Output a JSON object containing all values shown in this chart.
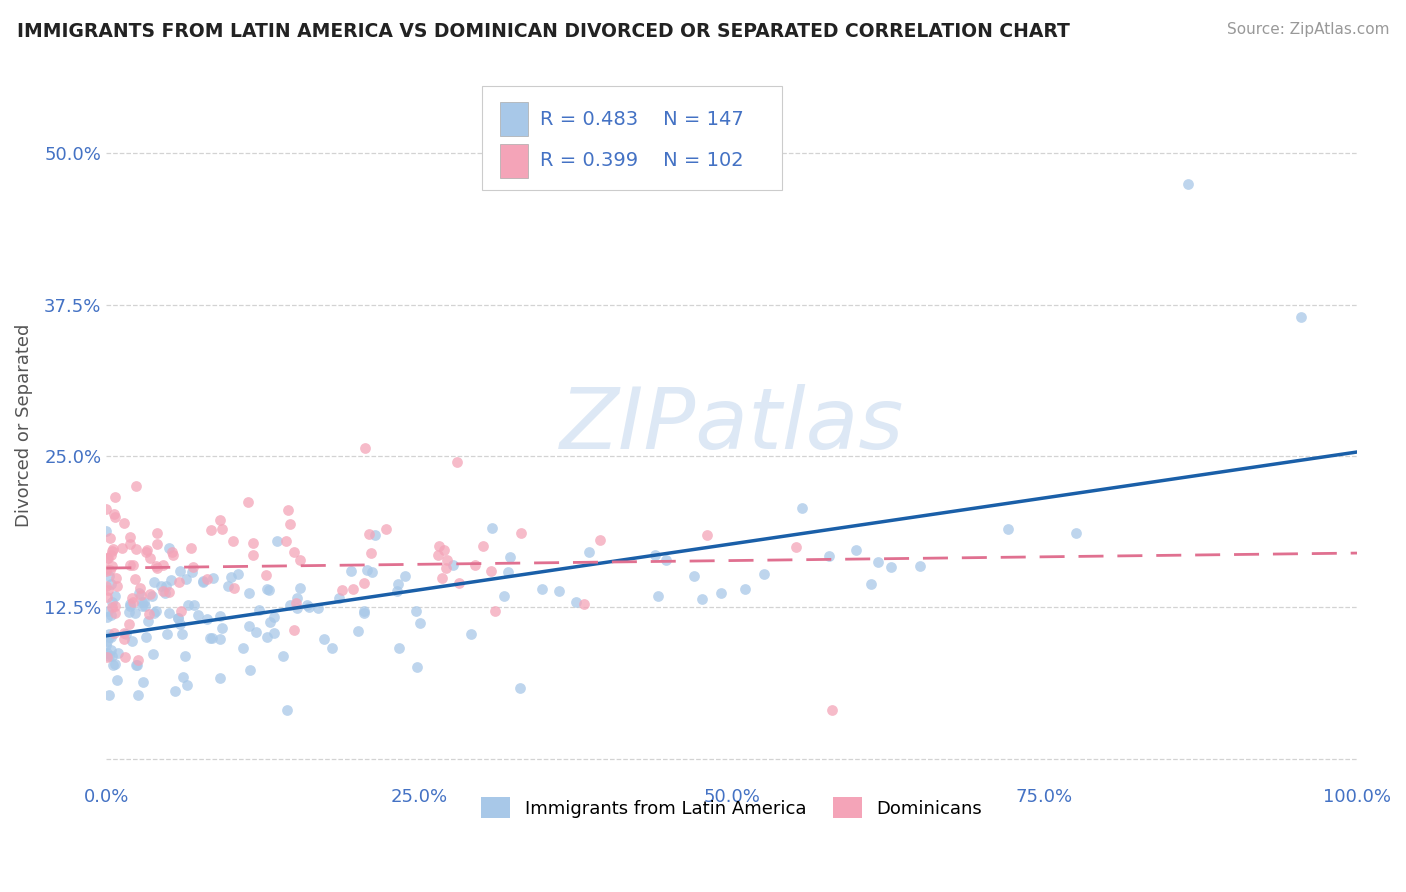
{
  "title": "IMMIGRANTS FROM LATIN AMERICA VS DOMINICAN DIVORCED OR SEPARATED CORRELATION CHART",
  "source": "Source: ZipAtlas.com",
  "ylabel": "Divorced or Separated",
  "legend_label1": "Immigrants from Latin America",
  "legend_label2": "Dominicans",
  "R1": 0.483,
  "N1": 147,
  "R2": 0.399,
  "N2": 102,
  "xlim": [
    0,
    1.0
  ],
  "ylim": [
    -0.02,
    0.57
  ],
  "xticks": [
    0.0,
    0.25,
    0.5,
    0.75,
    1.0
  ],
  "xtick_labels": [
    "0.0%",
    "25.0%",
    "50.0%",
    "75.0%",
    "100.0%"
  ],
  "yticks": [
    0.0,
    0.125,
    0.25,
    0.375,
    0.5
  ],
  "ytick_labels": [
    "",
    "12.5%",
    "25.0%",
    "37.5%",
    "50.0%"
  ],
  "color_blue": "#a8c8e8",
  "color_pink": "#f4a4b8",
  "color_blue_line": "#1a5fa8",
  "color_pink_line": "#e07090",
  "watermark_color": "#dde8f5",
  "background_color": "#ffffff",
  "title_color": "#222222",
  "tick_label_color": "#4472c4",
  "grid_color": "#c8c8c8",
  "ylabel_color": "#555555"
}
